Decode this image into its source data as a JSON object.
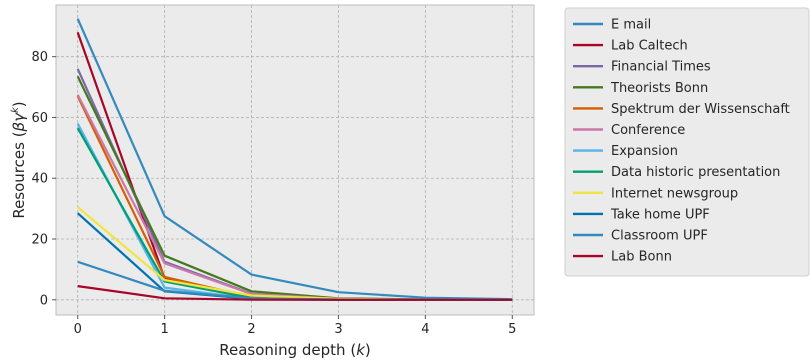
{
  "chart_data": {
    "type": "line",
    "xlabel_text": "Reasoning depth (",
    "xlabel_var": "k",
    "xlabel_close": ")",
    "ylabel_text": "Resources (",
    "ylabel_var": "βγ",
    "ylabel_sup": "k",
    "ylabel_close": ")",
    "xlim": [
      -0.25,
      5.25
    ],
    "ylim": [
      -5,
      97
    ],
    "x_ticks": [
      0,
      1,
      2,
      3,
      4,
      5
    ],
    "y_ticks": [
      0,
      20,
      40,
      60,
      80
    ],
    "grid": true,
    "legend_position": "outside-right",
    "x": [
      0,
      1,
      2,
      3,
      4,
      5
    ],
    "series": [
      {
        "name": "E mail",
        "color": "#348ABD",
        "values": [
          92.5,
          27.5,
          8.3,
          2.5,
          0.7,
          0.2
        ]
      },
      {
        "name": "Lab Caltech",
        "color": "#A60628",
        "values": [
          88,
          7.0,
          0.6,
          0.05,
          0,
          0
        ]
      },
      {
        "name": "Financial Times",
        "color": "#7A68A6",
        "values": [
          76,
          12.5,
          2.0,
          0.3,
          0.05,
          0
        ]
      },
      {
        "name": "Theorists Bonn",
        "color": "#467821",
        "values": [
          73.5,
          14.5,
          2.8,
          0.5,
          0.1,
          0
        ]
      },
      {
        "name": "Spektrum der Wissenschaft",
        "color": "#D55E00",
        "values": [
          67,
          7.5,
          0.9,
          0.1,
          0,
          0
        ]
      },
      {
        "name": "Conference",
        "color": "#CC79A7",
        "values": [
          67.5,
          12.0,
          1.9,
          0.3,
          0.05,
          0
        ]
      },
      {
        "name": "Expansion",
        "color": "#56B4E9",
        "values": [
          58,
          4.0,
          0.3,
          0,
          0,
          0
        ]
      },
      {
        "name": "Data historic presentation",
        "color": "#009E73",
        "values": [
          56.5,
          6.0,
          0.6,
          0.05,
          0,
          0
        ]
      },
      {
        "name": "Internet newsgroup",
        "color": "#F0E442",
        "values": [
          30.5,
          6.5,
          1.4,
          0.3,
          0.05,
          0
        ]
      },
      {
        "name": "Take home UPF",
        "color": "#0072B2",
        "values": [
          28.5,
          2.8,
          0.3,
          0,
          0,
          0
        ]
      },
      {
        "name": "Classroom UPF",
        "color": "#348ABD",
        "values": [
          12.5,
          3.0,
          0.5,
          0.1,
          0,
          0
        ]
      },
      {
        "name": "Lab Bonn",
        "color": "#A60628",
        "values": [
          4.5,
          0.5,
          0.05,
          0,
          0,
          0
        ]
      }
    ]
  }
}
